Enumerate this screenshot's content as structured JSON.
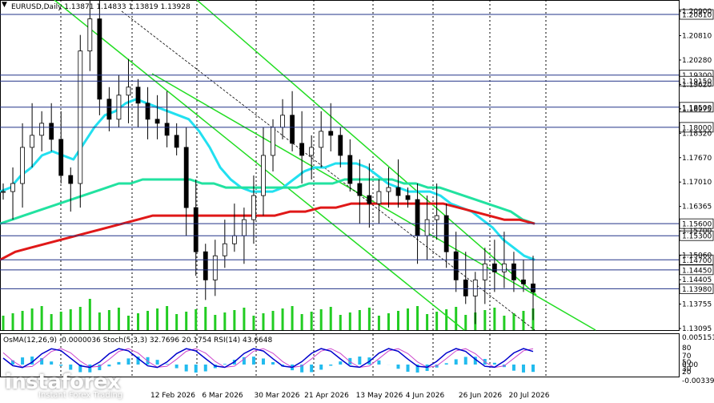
{
  "symbol_header": "EURUSD,Daily  1.13871 1.14833 1.13819 1.13928",
  "price_axis": [
    "1.20900",
    "1.20810",
    "1.20280",
    "1.19620",
    "1.18975",
    "1.18320",
    "1.17670",
    "1.17010",
    "1.16365",
    "1.15700",
    "1.15060",
    "1.14405",
    "1.13755",
    "1.13095"
  ],
  "level_labels": [
    {
      "text": "1.20810",
      "price": 1.2081
    },
    {
      "text": "1.19300",
      "price": 1.193
    },
    {
      "text": "1.19150",
      "price": 1.1915
    },
    {
      "text": "1.18500",
      "price": 1.185
    },
    {
      "text": "1.18000",
      "price": 1.18
    },
    {
      "text": "1.15600",
      "price": 1.156
    },
    {
      "text": "1.15300",
      "price": 1.153
    },
    {
      "text": "1.14700",
      "price": 1.147
    },
    {
      "text": "1.14450",
      "price": 1.1445
    },
    {
      "text": "1.13980",
      "price": 1.1398
    }
  ],
  "time_axis": [
    "12 Feb 2026",
    "6 Mar 2026",
    "30 Mar 2026",
    "21 Apr 2026",
    "13 May 2026",
    "4 Jun 2026",
    "26 Jun 2026",
    "20 Jul 2026"
  ],
  "indicator_header": "OsMA(12,26,9) -0.0000036  Stoch(5,3,3) 32.7696 20.1754  RSI(14) 43.6648",
  "indicator_axis": [
    "0.0051514",
    "80",
    "70",
    "50",
    "30",
    "20",
    "0.00",
    "-0.00339"
  ],
  "watermark": {
    "logo": "instaforex",
    "sub": "Instant Forex Trading"
  },
  "colors": {
    "ema50": "#22e0f0",
    "ema144": "#22e2a0",
    "ema200": "#e01818",
    "channel": "#22dd22",
    "candle": "#000000",
    "volume": "#22cc22",
    "stoch_main": "#0000cc",
    "stoch_signal": "#cc44cc",
    "osma": "#22bbee",
    "level_line": "#223388"
  },
  "chart_data": {
    "type": "line",
    "title": "EURUSD,Daily",
    "ohlc_last": {
      "open": 1.13871,
      "high": 1.14833,
      "low": 1.13819,
      "close": 1.13928
    },
    "ylim": [
      1.1295,
      1.2101
    ],
    "series": [
      {
        "name": "EURUSD",
        "values": [
          1.164,
          1.166,
          1.175,
          1.178,
          1.181,
          1.177,
          1.168,
          1.166,
          1.199,
          1.207,
          1.187,
          1.182,
          1.188,
          1.19,
          1.186,
          1.182,
          1.181,
          1.178,
          1.175,
          1.16,
          1.149,
          1.142,
          1.148,
          1.151,
          1.153,
          1.157,
          1.163,
          1.173,
          1.18,
          1.183,
          1.176,
          1.173,
          1.175,
          1.179,
          1.178,
          1.173,
          1.166,
          1.163,
          1.161,
          1.164,
          1.165,
          1.163,
          1.162,
          1.153,
          1.157,
          1.158,
          1.149,
          1.142,
          1.138,
          1.142,
          1.146,
          1.144,
          1.146,
          1.142,
          1.141,
          1.139
        ]
      },
      {
        "values": [
          1.164,
          1.165,
          1.168,
          1.17,
          1.173,
          1.174,
          1.173,
          1.172,
          1.176,
          1.18,
          1.183,
          1.184,
          1.186,
          1.187,
          1.186,
          1.185,
          1.184,
          1.183,
          1.182,
          1.179,
          1.175,
          1.17,
          1.167,
          1.165,
          1.164,
          1.164,
          1.164,
          1.165,
          1.167,
          1.169,
          1.17,
          1.17,
          1.171,
          1.171,
          1.171,
          1.17,
          1.168,
          1.166,
          1.165,
          1.164,
          1.164,
          1.164,
          1.163,
          1.161,
          1.16,
          1.159,
          1.157,
          1.155,
          1.152,
          1.15,
          1.148,
          1.147
        ]
      },
      {
        "values": [
          1.156,
          1.157,
          1.158,
          1.159,
          1.16,
          1.161,
          1.162,
          1.163,
          1.164,
          1.165,
          1.166,
          1.166,
          1.167,
          1.167,
          1.167,
          1.167,
          1.167,
          1.166,
          1.166,
          1.165,
          1.165,
          1.165,
          1.165,
          1.165,
          1.165,
          1.165,
          1.166,
          1.166,
          1.166,
          1.167,
          1.167,
          1.167,
          1.167,
          1.167,
          1.166,
          1.166,
          1.165,
          1.165,
          1.164,
          1.163,
          1.162,
          1.161,
          1.16,
          1.159,
          1.157,
          1.156
        ]
      },
      {
        "values": [
          1.147,
          1.149,
          1.15,
          1.151,
          1.152,
          1.153,
          1.154,
          1.155,
          1.156,
          1.157,
          1.158,
          1.158,
          1.158,
          1.158,
          1.158,
          1.158,
          1.158,
          1.158,
          1.158,
          1.159,
          1.159,
          1.16,
          1.16,
          1.161,
          1.161,
          1.161,
          1.161,
          1.161,
          1.161,
          1.161,
          1.16,
          1.159,
          1.158,
          1.157,
          1.157,
          1.156
        ]
      }
    ]
  }
}
